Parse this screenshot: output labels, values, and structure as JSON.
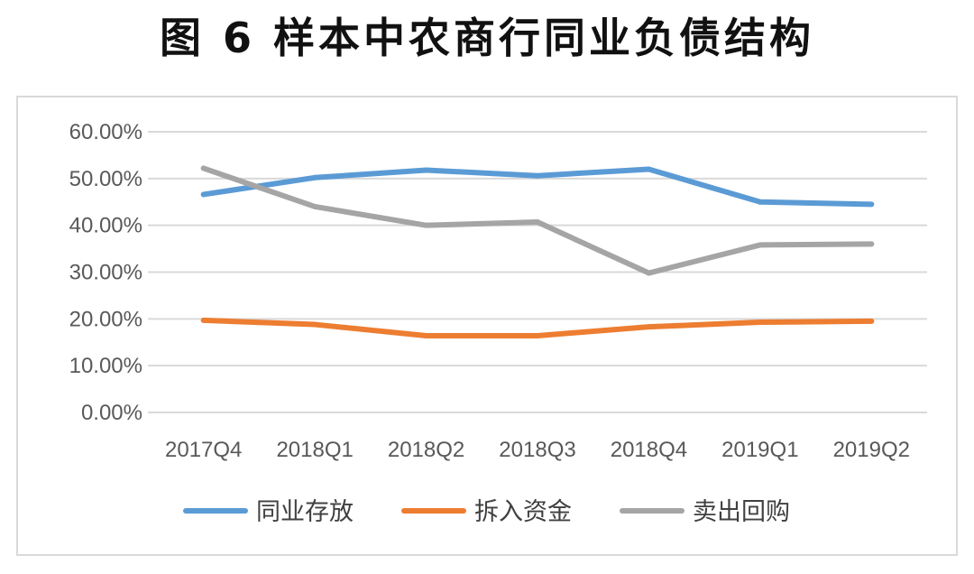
{
  "figure": {
    "title": "图 6 样本中农商行同业负债结构"
  },
  "chart_data": {
    "type": "line",
    "title": "",
    "xlabel": "",
    "ylabel": "",
    "categories": [
      "2017Q4",
      "2018Q1",
      "2018Q2",
      "2018Q3",
      "2018Q4",
      "2019Q1",
      "2019Q2"
    ],
    "ylim": [
      0,
      60
    ],
    "yticks": [
      "0.00%",
      "10.00%",
      "20.00%",
      "30.00%",
      "40.00%",
      "50.00%",
      "60.00%"
    ],
    "grid": true,
    "legend_position": "bottom",
    "series": [
      {
        "name": "同业存放",
        "color": "#5B9BD5",
        "values": [
          46.6,
          50.2,
          51.8,
          50.6,
          52.0,
          45.0,
          44.5
        ]
      },
      {
        "name": "拆入资金",
        "color": "#ED7D31",
        "values": [
          19.7,
          18.8,
          16.4,
          16.4,
          18.3,
          19.3,
          19.5
        ]
      },
      {
        "name": "卖出回购",
        "color": "#A5A5A5",
        "values": [
          52.2,
          44.0,
          40.0,
          40.7,
          29.8,
          35.8,
          36.0
        ]
      }
    ]
  }
}
